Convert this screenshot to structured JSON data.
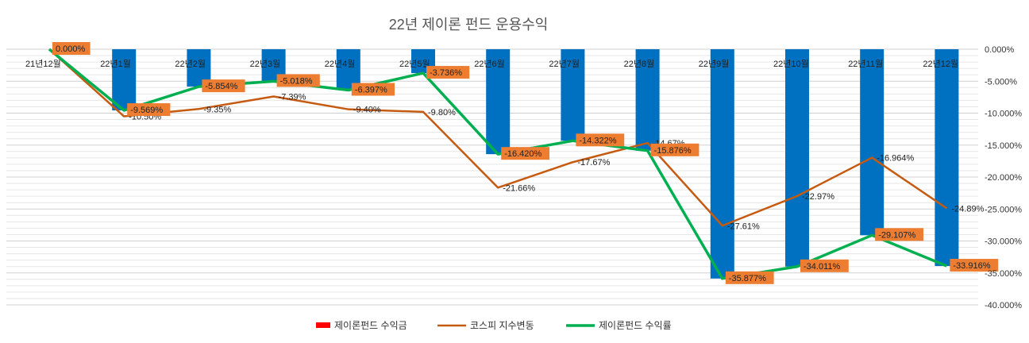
{
  "chart_data": {
    "type": "bar",
    "title": "22년 제이론 펀드 운용수익",
    "categories": [
      "21년12월",
      "22년1월",
      "22년2월",
      "22년3월",
      "22년4월",
      "22년5월",
      "22년6월",
      "22년7월",
      "22년8월",
      "22년9월",
      "22년10월",
      "22년11월",
      "22년12월"
    ],
    "y_axis": {
      "min": -40,
      "max": 0,
      "step": 5,
      "tick_labels": [
        "0.000%",
        "-5.000%",
        "-10.000%",
        "-15.000%",
        "-20.000%",
        "-25.000%",
        "-30.000%",
        "-35.000%",
        "-40.000%"
      ],
      "position": "right",
      "grid": true
    },
    "legend_position": "bottom",
    "series": [
      {
        "name": "제이론펀드 수익금",
        "kind": "bar",
        "color": "#ff0000",
        "bar_color": "#0070c0",
        "values": [
          0,
          -9.569,
          -5.854,
          -5.018,
          -6.397,
          -3.736,
          -16.42,
          -14.322,
          -15.876,
          -35.877,
          -34.011,
          -29.107,
          -33.916
        ]
      },
      {
        "name": "코스피 지수변동",
        "kind": "line",
        "color": "#c55a11",
        "values": [
          0,
          -10.5,
          -9.35,
          -7.39,
          -9.4,
          -9.8,
          -21.66,
          -17.67,
          -14.67,
          -27.61,
          -22.97,
          -16.964,
          -24.89
        ],
        "labels": [
          "",
          "-10.50%",
          "-9.35%",
          "-7.39%",
          "-9.40%",
          "-9.80%",
          "-21.66%",
          "-17.67%",
          "-14.67%",
          "-27.61%",
          "-22.97%",
          "-16.964%",
          "-24.89%"
        ]
      },
      {
        "name": "제이론펀드 수익률",
        "kind": "line",
        "color": "#00b050",
        "values": [
          0,
          -9.569,
          -5.854,
          -5.018,
          -6.397,
          -3.736,
          -16.42,
          -14.322,
          -15.876,
          -35.877,
          -34.011,
          -29.107,
          -33.916
        ],
        "labels": [
          "0.000%",
          "-9.569%",
          "-5.854%",
          "-5.018%",
          "-6.397%",
          "-3.736%",
          "-16.420%",
          "-14.322%",
          "-15.876%",
          "-35.877%",
          "-34.011%",
          "-29.107%",
          "-33.916%"
        ],
        "label_bg": "#ed7d31"
      }
    ]
  }
}
